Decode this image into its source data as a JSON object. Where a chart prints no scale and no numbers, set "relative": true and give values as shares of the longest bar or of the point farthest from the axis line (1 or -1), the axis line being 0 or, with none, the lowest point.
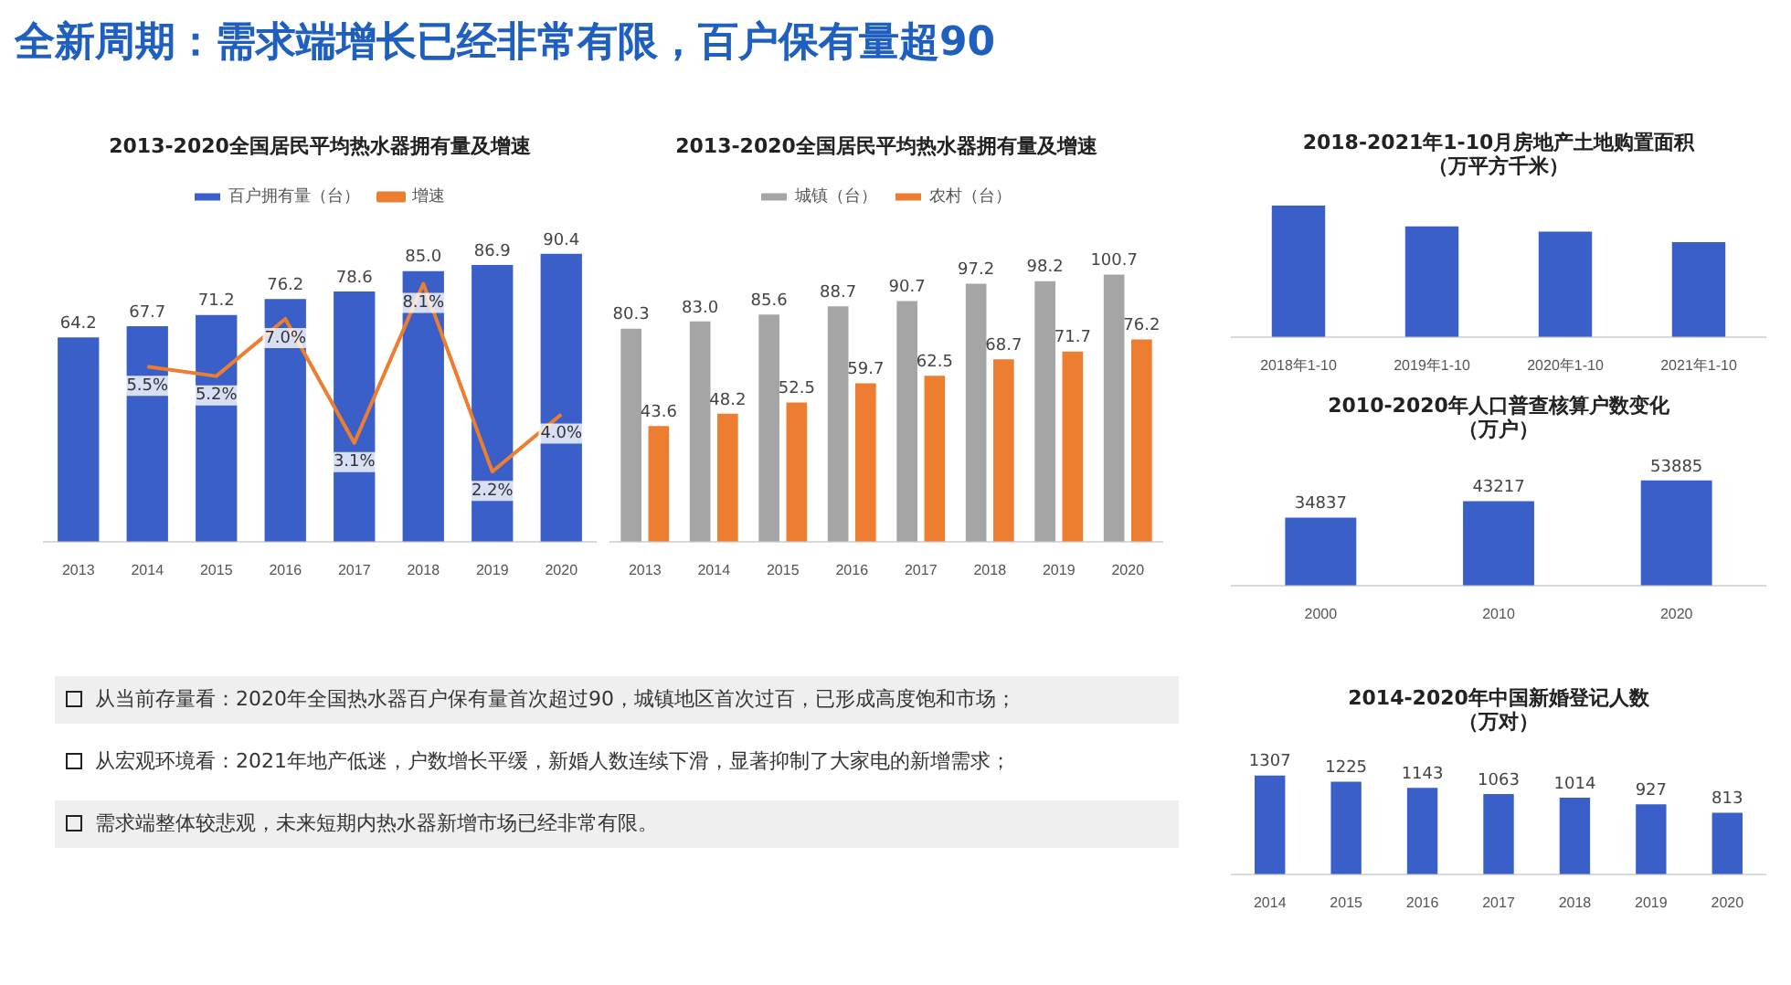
{
  "chart_data": [
    {
      "type": "other",
      "title": "全新周期：需求端增长已经非常有限，百户保有量超90",
      "annotations": [
        "从当前存量看：2020年全国热水器百户保有量首次超过90，城镇地区首次过百，已形成高度饱和市场；",
        "从宏观环境看：2021年地产低迷，户数增长平缓，新婚人数连续下滑，显著抑制了大家电的新增需求；",
        "需求端整体较悲观，未来短期内热水器新增市场已经非常有限。"
      ]
    },
    {
      "type": "bar",
      "title": "2013-2020全国居民平均热水器拥有量及增速",
      "categories": [
        "2013",
        "2014",
        "2015",
        "2016",
        "2017",
        "2018",
        "2019",
        "2020"
      ],
      "legend": "top",
      "series": [
        {
          "name": "百户拥有量（台）",
          "color": "#3a5fc8",
          "values": [
            64.2,
            67.7,
            71.2,
            76.2,
            78.6,
            85.0,
            86.9,
            90.4
          ],
          "value_labels": [
            "64.2",
            "67.7",
            "71.2",
            "76.2",
            "78.6",
            "85.0",
            "86.9",
            "90.4"
          ]
        },
        {
          "name": "增速",
          "type": "line",
          "axis": "y2",
          "color": "#ed7d31",
          "values": [
            null,
            5.5,
            5.2,
            7.0,
            3.1,
            8.1,
            2.2,
            4.0
          ],
          "value_labels": [
            null,
            "5.5%",
            "5.2%",
            "7.0%",
            "3.1%",
            "8.1%",
            "2.2%",
            "4.0%"
          ]
        }
      ]
    },
    {
      "type": "bar",
      "title": "2013-2020全国居民平均热水器拥有量及增速",
      "categories": [
        "2013",
        "2014",
        "2015",
        "2016",
        "2017",
        "2018",
        "2019",
        "2020"
      ],
      "legend": "top",
      "series": [
        {
          "name": "城镇（台）",
          "color": "#a5a5a5",
          "values": [
            80.3,
            83.0,
            85.6,
            88.7,
            90.7,
            97.2,
            98.2,
            100.7
          ],
          "value_labels": [
            "80.3",
            "83.0",
            "85.6",
            "88.7",
            "90.7",
            "97.2",
            "98.2",
            "100.7"
          ]
        },
        {
          "name": "农村（台）",
          "color": "#ed7d31",
          "values": [
            43.6,
            48.2,
            52.5,
            59.7,
            62.5,
            68.7,
            71.7,
            76.2
          ],
          "value_labels": [
            "43.6",
            "48.2",
            "52.5",
            "59.7",
            "62.5",
            "68.7",
            "71.7",
            "76.2"
          ]
        }
      ]
    },
    {
      "type": "bar",
      "title": "2018-2021年1-10月房地产土地购置面积",
      "subtitle": "（万平方千米）",
      "categories": [
        "2018年1-10",
        "2019年1-10",
        "2020年1-10",
        "2021年1-10"
      ],
      "relative": true,
      "color": "#3a5fc8",
      "values": [
        1,
        0.84,
        0.8,
        0.72
      ]
    },
    {
      "type": "bar",
      "title": "2010-2020年人口普查核算户数变化",
      "subtitle": "（万户）",
      "categories": [
        "2000",
        "2010",
        "2020"
      ],
      "color": "#3a5fc8",
      "values": [
        34837,
        43217,
        53885
      ],
      "data_labels": true
    },
    {
      "type": "bar",
      "title": "2014-2020年中国新婚登记人数",
      "subtitle": "（万对）",
      "categories": [
        "2014",
        "2015",
        "2016",
        "2017",
        "2018",
        "2019",
        "2020"
      ],
      "color": "#3a5fc8",
      "values": [
        1307,
        1225,
        1143,
        1063,
        1014,
        927,
        813
      ],
      "data_labels": true
    }
  ]
}
